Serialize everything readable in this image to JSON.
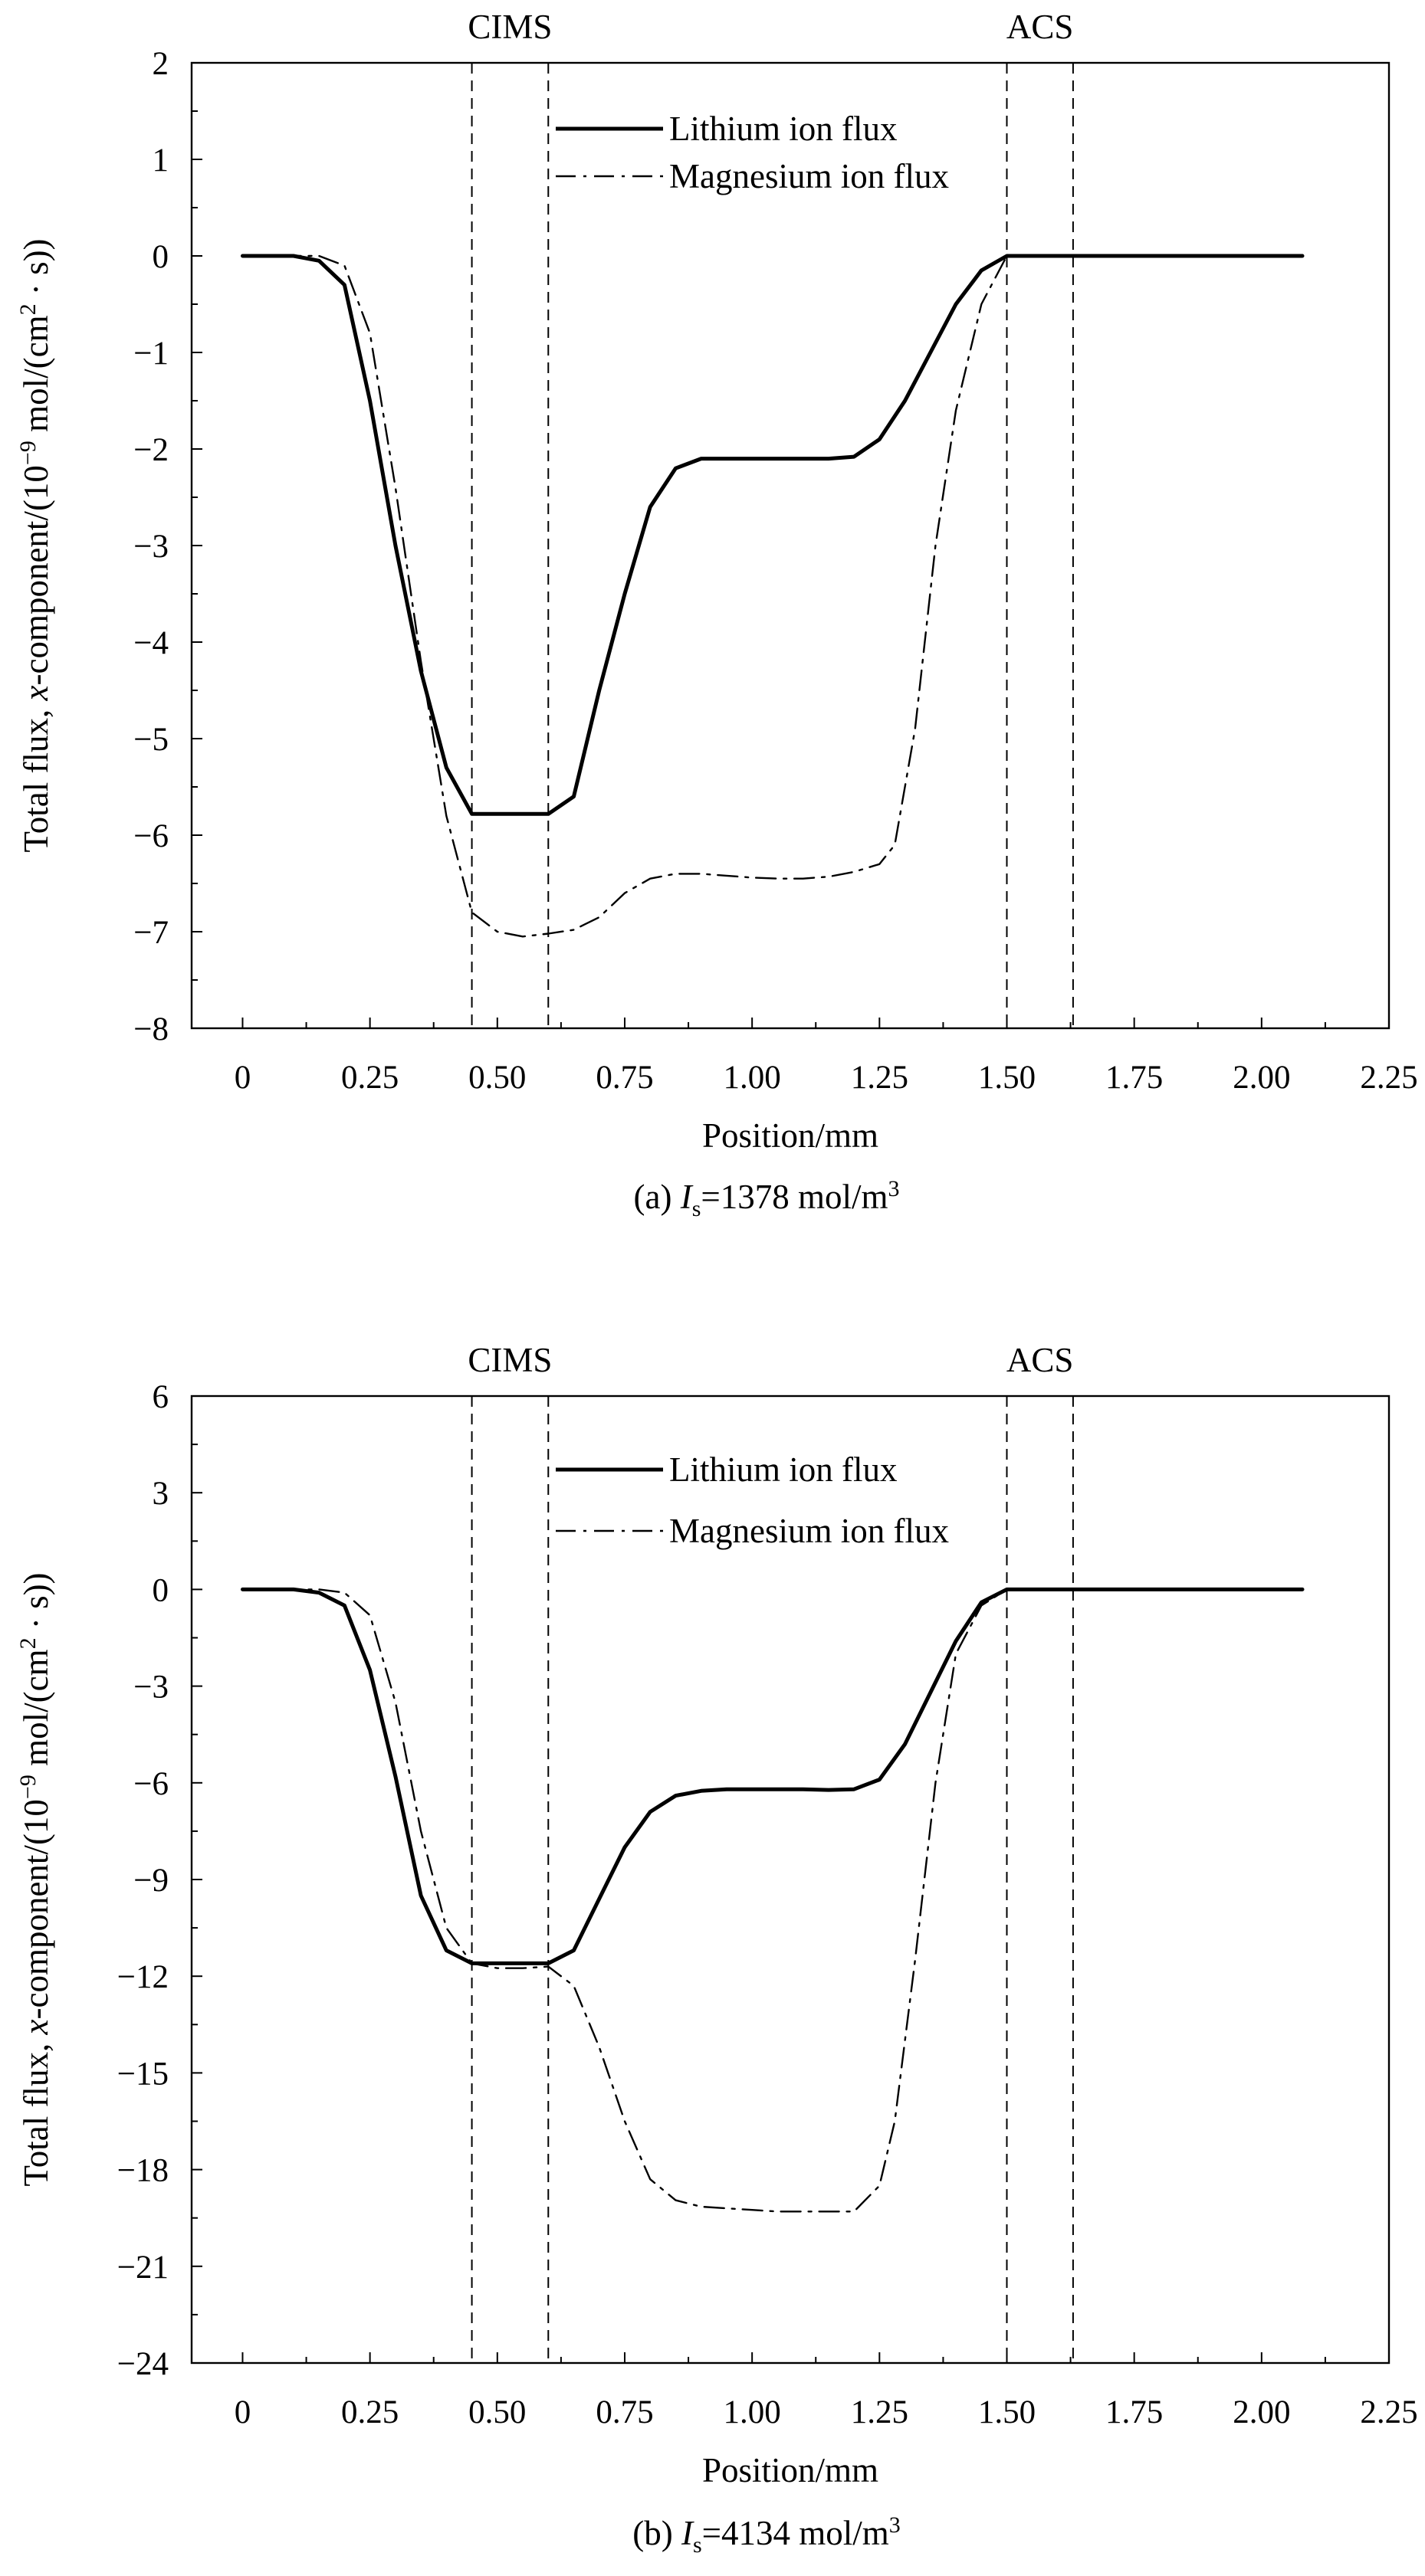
{
  "chart_data": [
    {
      "type": "line",
      "caption": "(a) Is=1378 mol/m3",
      "caption_parts": {
        "prefix": "(a) ",
        "var": "I",
        "sub": "s",
        "mid": "=1378 mol/m",
        "sup": "3"
      },
      "xlabel": "Position/mm",
      "ylabel": "Total flux, x-component/(10−9 mol/(cm2 · s))",
      "ylabel_parts": [
        "Total flux, ",
        "x",
        "-component/(10",
        "−9",
        " mol/(cm",
        "2",
        " · s))"
      ],
      "xlim": [
        -0.1,
        2.25
      ],
      "ylim": [
        -8,
        2
      ],
      "xticks": [
        0,
        0.25,
        0.5,
        0.75,
        1.0,
        1.25,
        1.5,
        1.75,
        2.0,
        2.25
      ],
      "xtick_labels": [
        "0",
        "0.25",
        "0.50",
        "0.75",
        "1.00",
        "1.25",
        "1.50",
        "1.75",
        "2.00",
        "2.25"
      ],
      "yticks": [
        2,
        1,
        0,
        -1,
        -2,
        -3,
        -4,
        -5,
        -6,
        -7,
        -8
      ],
      "ytick_labels": [
        "2",
        "1",
        "0",
        "−1",
        "−2",
        "−3",
        "−4",
        "−5",
        "−6",
        "−7",
        "−8"
      ],
      "regions": [
        {
          "label": "CIMS",
          "x": [
            0.45,
            0.6
          ]
        },
        {
          "label": "ACS",
          "x": [
            1.5,
            1.63
          ]
        }
      ],
      "legend_position": "top-center",
      "series": [
        {
          "name": "Lithium ion flux",
          "style": "solid",
          "x": [
            0,
            0.05,
            0.1,
            0.15,
            0.2,
            0.25,
            0.3,
            0.35,
            0.4,
            0.45,
            0.5,
            0.55,
            0.6,
            0.65,
            0.7,
            0.75,
            0.8,
            0.85,
            0.9,
            0.95,
            1.0,
            1.05,
            1.1,
            1.15,
            1.2,
            1.25,
            1.3,
            1.35,
            1.4,
            1.45,
            1.5,
            1.55,
            1.6,
            1.7,
            1.8,
            1.9,
            2.0,
            2.08
          ],
          "y": [
            0,
            0,
            0,
            -0.05,
            -0.3,
            -1.5,
            -3.0,
            -4.3,
            -5.3,
            -5.78,
            -5.78,
            -5.78,
            -5.78,
            -5.6,
            -4.5,
            -3.5,
            -2.6,
            -2.2,
            -2.1,
            -2.1,
            -2.1,
            -2.1,
            -2.1,
            -2.1,
            -2.08,
            -1.9,
            -1.5,
            -1.0,
            -0.5,
            -0.15,
            0,
            0,
            0,
            0,
            0,
            0,
            0,
            0
          ]
        },
        {
          "name": "Magnesium ion flux",
          "style": "dashdot",
          "x": [
            0,
            0.05,
            0.1,
            0.15,
            0.2,
            0.25,
            0.3,
            0.35,
            0.4,
            0.45,
            0.5,
            0.55,
            0.6,
            0.65,
            0.7,
            0.75,
            0.8,
            0.85,
            0.9,
            0.95,
            1.0,
            1.05,
            1.1,
            1.15,
            1.2,
            1.25,
            1.28,
            1.32,
            1.36,
            1.4,
            1.45,
            1.5,
            1.55,
            1.6,
            1.7,
            1.8,
            1.9,
            2.0,
            2.08
          ],
          "y": [
            0,
            0,
            0,
            0,
            -0.1,
            -0.8,
            -2.4,
            -4.2,
            -5.8,
            -6.8,
            -7.0,
            -7.05,
            -7.02,
            -6.98,
            -6.85,
            -6.6,
            -6.45,
            -6.4,
            -6.4,
            -6.42,
            -6.44,
            -6.45,
            -6.45,
            -6.43,
            -6.38,
            -6.3,
            -6.1,
            -4.9,
            -3.0,
            -1.6,
            -0.5,
            0,
            0,
            0,
            0,
            0,
            0,
            0,
            0
          ]
        }
      ]
    },
    {
      "type": "line",
      "caption": "(b) Is=4134 mol/m3",
      "caption_parts": {
        "prefix": "(b) ",
        "var": "I",
        "sub": "s",
        "mid": "=4134 mol/m",
        "sup": "3"
      },
      "xlabel": "Position/mm",
      "ylabel": "Total flux, x-component/(10−9 mol/(cm2 · s))",
      "ylabel_parts": [
        "Total flux, ",
        "x",
        "-component/(10",
        "−9",
        " mol/(cm",
        "2",
        " · s))"
      ],
      "xlim": [
        -0.1,
        2.25
      ],
      "ylim": [
        -24,
        6
      ],
      "xticks": [
        0,
        0.25,
        0.5,
        0.75,
        1.0,
        1.25,
        1.5,
        1.75,
        2.0,
        2.25
      ],
      "xtick_labels": [
        "0",
        "0.25",
        "0.50",
        "0.75",
        "1.00",
        "1.25",
        "1.50",
        "1.75",
        "2.00",
        "2.25"
      ],
      "yticks": [
        6,
        3,
        0,
        -3,
        -6,
        -9,
        -12,
        -15,
        -18,
        -21,
        -24
      ],
      "ytick_labels": [
        "6",
        "3",
        "0",
        "−3",
        "−6",
        "−9",
        "−12",
        "−15",
        "−18",
        "−21",
        "−24"
      ],
      "regions": [
        {
          "label": "CIMS",
          "x": [
            0.45,
            0.6
          ]
        },
        {
          "label": "ACS",
          "x": [
            1.5,
            1.63
          ]
        }
      ],
      "legend_position": "top-center",
      "series": [
        {
          "name": "Lithium ion flux",
          "style": "solid",
          "x": [
            0,
            0.05,
            0.1,
            0.15,
            0.2,
            0.25,
            0.3,
            0.35,
            0.4,
            0.45,
            0.5,
            0.55,
            0.6,
            0.65,
            0.7,
            0.75,
            0.8,
            0.85,
            0.9,
            0.95,
            1.0,
            1.05,
            1.1,
            1.15,
            1.2,
            1.25,
            1.3,
            1.35,
            1.4,
            1.45,
            1.5,
            1.55,
            1.6,
            1.7,
            1.8,
            1.9,
            2.0,
            2.08
          ],
          "y": [
            0,
            0,
            0,
            -0.1,
            -0.5,
            -2.5,
            -5.8,
            -9.5,
            -11.2,
            -11.6,
            -11.6,
            -11.6,
            -11.6,
            -11.2,
            -9.6,
            -8.0,
            -6.9,
            -6.4,
            -6.25,
            -6.2,
            -6.2,
            -6.2,
            -6.2,
            -6.22,
            -6.2,
            -5.9,
            -4.8,
            -3.2,
            -1.6,
            -0.4,
            0,
            0,
            0,
            0,
            0,
            0,
            0,
            0
          ]
        },
        {
          "name": "Magnesium ion flux",
          "style": "dashdot",
          "x": [
            0,
            0.05,
            0.1,
            0.15,
            0.2,
            0.25,
            0.3,
            0.35,
            0.4,
            0.45,
            0.5,
            0.55,
            0.6,
            0.65,
            0.7,
            0.75,
            0.8,
            0.85,
            0.9,
            0.95,
            1.0,
            1.05,
            1.1,
            1.15,
            1.2,
            1.25,
            1.28,
            1.32,
            1.36,
            1.4,
            1.45,
            1.5,
            1.55,
            1.6,
            1.7,
            1.8,
            1.9,
            2.0,
            2.08
          ],
          "y": [
            0,
            0,
            0,
            0,
            -0.1,
            -0.8,
            -3.5,
            -7.5,
            -10.5,
            -11.6,
            -11.75,
            -11.75,
            -11.7,
            -12.3,
            -14.2,
            -16.5,
            -18.3,
            -18.95,
            -19.15,
            -19.2,
            -19.25,
            -19.3,
            -19.3,
            -19.3,
            -19.3,
            -18.5,
            -16.5,
            -11.5,
            -6.0,
            -2.0,
            -0.5,
            0,
            0,
            0,
            0,
            0,
            0,
            0,
            0
          ]
        }
      ]
    }
  ]
}
